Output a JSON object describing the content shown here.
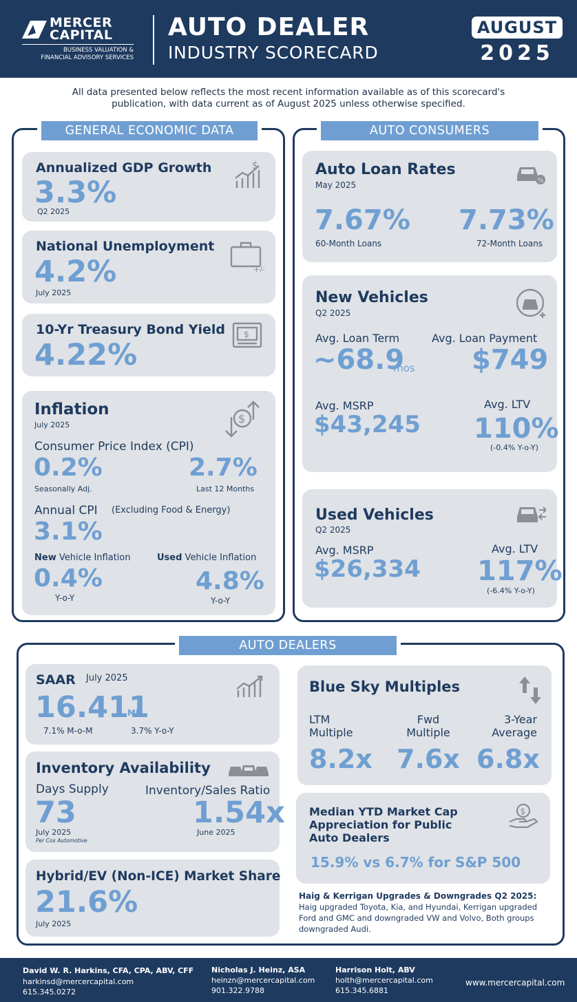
{
  "header": {
    "logo_line1": "MERCER",
    "logo_line2": "CAPITAL",
    "logo_tag1": "BUSINESS VALUATION &",
    "logo_tag2": "FINANCIAL ADVISORY SERVICES",
    "title_line1": "AUTO DEALER",
    "title_line2": "INDUSTRY SCORECARD",
    "month": "AUGUST",
    "year": "2025"
  },
  "intro": {
    "line1": "All data presented below reflects the most recent information available as of this scorecard's",
    "line2": "publication, with data current as of August 2025 unless otherwise specified."
  },
  "economic": {
    "section_label": "GENERAL ECONOMIC DATA",
    "gdp": {
      "title": "Annualized GDP Growth",
      "value": "3.3%",
      "period": "Q2 2025"
    },
    "unemployment": {
      "title": "National Unemployment",
      "value": "4.2%",
      "period": "July 2025"
    },
    "treasury": {
      "title": "10-Yr Treasury Bond Yield",
      "value": "4.22%"
    },
    "inflation": {
      "title": "Inflation",
      "period": "July 2025",
      "cpi_label": "Consumer Price Index (CPI)",
      "cpi_sa_value": "0.2%",
      "cpi_sa_label": "Seasonally Adj.",
      "cpi_12m_value": "2.7%",
      "cpi_12m_label": "Last 12 Months",
      "annual_label": "Annual CPI",
      "annual_note": "(Excluding Food & Energy)",
      "annual_value": "3.1%",
      "new_bold": "New",
      "new_label": " Vehicle Inflation",
      "new_value": "0.4%",
      "new_yoy": "Y-o-Y",
      "used_bold": "Used",
      "used_label": " Vehicle Inflation",
      "used_value": "4.8%",
      "used_yoy": "Y-o-Y"
    }
  },
  "consumers": {
    "section_label": "AUTO CONSUMERS",
    "loan_rates": {
      "title": "Auto Loan Rates",
      "period": "May 2025",
      "v60": "7.67%",
      "l60": "60-Month Loans",
      "v72": "7.73%",
      "l72": "72-Month Loans"
    },
    "new_vehicles": {
      "title": "New Vehicles",
      "period": "Q2 2025",
      "term_label": "Avg. Loan Term",
      "term_value": "~68.9",
      "term_unit": "mos",
      "payment_label": "Avg. Loan Payment",
      "payment_value": "$749",
      "msrp_label": "Avg. MSRP",
      "msrp_value": "$43,245",
      "ltv_label": "Avg. LTV",
      "ltv_value": "110%",
      "ltv_change": "(-0.4% Y-o-Y)"
    },
    "used_vehicles": {
      "title": "Used Vehicles",
      "period": "Q2 2025",
      "msrp_label": "Avg. MSRP",
      "msrp_value": "$26,334",
      "ltv_label": "Avg. LTV",
      "ltv_value": "117%",
      "ltv_change": "(-6.4% Y-o-Y)"
    }
  },
  "dealers": {
    "section_label": "AUTO DEALERS",
    "saar": {
      "title": "SAAR",
      "period": "July 2025",
      "value": "16.411",
      "unit": "Mil",
      "mom": "7.1% M-o-M",
      "yoy": "3.7% Y-o-Y"
    },
    "inventory": {
      "title": "Inventory Availability",
      "days_label": "Days Supply",
      "days_value": "73",
      "days_period": "July 2025",
      "days_source": "Per Cox Automotive",
      "ratio_label": "Inventory/Sales Ratio",
      "ratio_value": "1.54x",
      "ratio_period": "June 2025"
    },
    "ev": {
      "title": "Hybrid/EV (Non-ICE) Market Share",
      "value": "21.6%",
      "period": "July 2025"
    },
    "blue_sky": {
      "title": "Blue Sky Multiples",
      "ltm_l1": "LTM",
      "ltm_l2": "Multiple",
      "ltm_value": "8.2x",
      "fwd_l1": "Fwd",
      "fwd_l2": "Multiple",
      "fwd_value": "7.6x",
      "avg_l1": "3-Year",
      "avg_l2": "Average",
      "avg_value": "6.8x"
    },
    "market_cap": {
      "line1": "Median YTD Market Cap",
      "line2": "Appreciation for Public",
      "line3": "Auto Dealers",
      "value": "15.9% vs 6.7% for S&P 500"
    },
    "upgrades": {
      "title": "Haig & Kerrigan Upgrades & Downgrades Q2 2025:",
      "line1": "Haig upgraded Toyota, Kia, and Hyundai, Kerrigan upgraded",
      "line2": "Ford and GMC and downgraded VW and Volvo, Both groups",
      "line3": "downgraded Audi."
    }
  },
  "footer": {
    "p1_name": "David W. R. Harkins, CFA, CPA, ABV, CFF",
    "p1_email": "harkinsd@mercercapital.com",
    "p1_phone": "615.345.0272",
    "p2_name": "Nicholas J. Heinz, ASA",
    "p2_email": "heinzn@mercercapital.com",
    "p2_phone": "901.322.9788",
    "p3_name": "Harrison Holt, ABV",
    "p3_email": "holth@mercercapital.com",
    "p3_phone": "615.345.6881",
    "website": "www.mercercapital.com"
  },
  "colors": {
    "navy": "#1e3a5f",
    "accent": "#6f9fd2",
    "card": "#dfe2e6"
  },
  "icons": [
    "chart-dollar-icon",
    "briefcase-icon",
    "bank-note-icon",
    "dollar-arrows-icon",
    "car-percent-icon",
    "car-plus-icon",
    "car-arrows-icon",
    "growth-chart-icon",
    "up-down-arrows-icon",
    "cars-icon",
    "hand-dollar-icon"
  ]
}
